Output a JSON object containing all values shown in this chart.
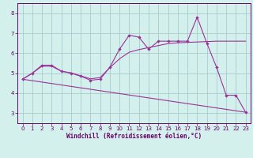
{
  "xlabel": "Windchill (Refroidissement éolien,°C)",
  "background_color": "#d4f0ec",
  "grid_color": "#aacccc",
  "line_color": "#993399",
  "x_ticks": [
    0,
    1,
    2,
    3,
    4,
    5,
    6,
    7,
    8,
    9,
    10,
    11,
    12,
    13,
    14,
    15,
    16,
    17,
    18,
    19,
    20,
    21,
    22,
    23
  ],
  "ylim": [
    2.5,
    8.5
  ],
  "xlim": [
    -0.5,
    23.5
  ],
  "yticks": [
    3,
    4,
    5,
    6,
    7,
    8
  ],
  "line1_x": [
    0,
    1,
    2,
    3,
    4,
    5,
    6,
    7,
    8,
    9,
    10,
    11,
    12,
    13,
    14,
    15,
    16,
    17,
    18,
    19,
    20,
    21,
    22,
    23
  ],
  "line1_y": [
    4.7,
    5.0,
    5.4,
    5.4,
    5.1,
    5.0,
    4.85,
    4.65,
    4.7,
    5.3,
    6.2,
    6.9,
    6.8,
    6.2,
    6.6,
    6.6,
    6.6,
    6.6,
    7.8,
    6.5,
    5.3,
    3.9,
    3.9,
    3.05
  ],
  "line2_x": [
    0,
    1,
    2,
    3,
    4,
    5,
    6,
    7,
    8,
    9,
    10,
    11,
    12,
    13,
    14,
    15,
    16,
    17,
    18,
    19,
    20,
    21,
    22,
    23
  ],
  "line2_y": [
    4.7,
    5.0,
    5.35,
    5.35,
    5.1,
    5.02,
    4.87,
    4.72,
    4.78,
    5.28,
    5.72,
    6.05,
    6.18,
    6.28,
    6.38,
    6.48,
    6.52,
    6.54,
    6.56,
    6.58,
    6.6,
    6.6,
    6.6,
    6.6
  ],
  "line3_x": [
    0,
    23
  ],
  "line3_y": [
    4.7,
    3.05
  ]
}
